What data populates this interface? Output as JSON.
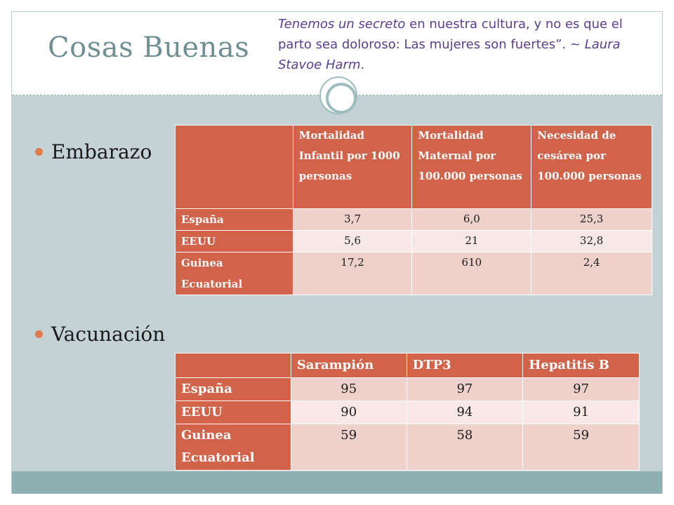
{
  "slide": {
    "title": "Cosas Buenas",
    "quote": {
      "italic_lead": "Tenemos un secreto",
      "mid": " en nuestra cultura, y no es que el parto sea doloroso: Las mujeres son fuertes”. ~ ",
      "author": "Laura Stavoe Harm",
      "end": "."
    },
    "colors": {
      "accent": "#d1634a",
      "title": "#6f8f93",
      "quote": "#5a3e8f",
      "body_bg": "#c5d2d5",
      "footer_band": "#8fb0b2"
    }
  },
  "bullets": {
    "embarazo": "Embarazo",
    "vacunacion": "Vacunación"
  },
  "table_embarazo": {
    "headers": [
      "",
      "Mortalidad Infantil por 1000 personas",
      "Mortalidad Maternal por 100.000 personas",
      "Necesidad de cesárea por 100.000 personas"
    ],
    "rows": [
      {
        "label": "España",
        "values": [
          "3,7",
          "6,0",
          "25,3"
        ]
      },
      {
        "label": "EEUU",
        "values": [
          "5,6",
          "21",
          "32,8"
        ]
      },
      {
        "label": "Guinea Ecuatorial",
        "values": [
          "17,2",
          "610",
          "2,4"
        ]
      }
    ]
  },
  "table_vacunacion": {
    "headers": [
      "",
      "Sarampión",
      "DTP3",
      "Hepatitis B"
    ],
    "rows": [
      {
        "label": "España",
        "values": [
          "95",
          "97",
          "97"
        ]
      },
      {
        "label": "EEUU",
        "values": [
          "90",
          "94",
          "91"
        ]
      },
      {
        "label": "Guinea Ecuatorial",
        "values": [
          "59",
          "58",
          "59"
        ]
      }
    ]
  }
}
